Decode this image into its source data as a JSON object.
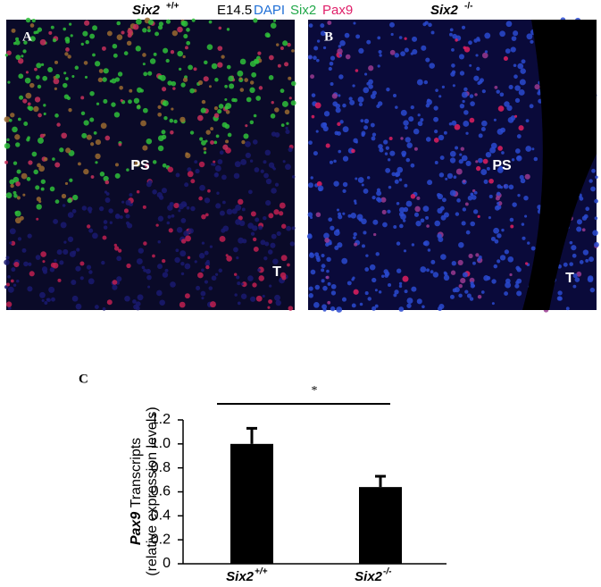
{
  "header": {
    "left_genotype": {
      "gene": "Six2",
      "sup": "+/+"
    },
    "stage": "E14.5",
    "stains": [
      {
        "name": "DAPI",
        "color": "#1f6fd6"
      },
      {
        "name": "Six2",
        "color": "#22a84a"
      },
      {
        "name": "Pax9",
        "color": "#e0206a"
      }
    ],
    "right_genotype": {
      "gene": "Six2",
      "sup": "-/-"
    }
  },
  "panels": [
    {
      "label": "A",
      "regions": [
        "PS",
        "T"
      ]
    },
    {
      "label": "B",
      "regions": [
        "PS",
        "T"
      ]
    }
  ],
  "chart_data": {
    "type": "bar",
    "label": "C",
    "categories": [
      "Six2",
      "Six2"
    ],
    "category_superscripts": [
      "+/+",
      "-/-"
    ],
    "values": [
      1.0,
      0.64
    ],
    "errors": [
      0.13,
      0.09
    ],
    "color": "#000000",
    "ylabel": {
      "gene": "Pax9",
      "text": "Transcripts",
      "second_line": "(relative expression levels)"
    },
    "ylim": [
      0,
      1.2
    ],
    "yticks": [
      0,
      0.2,
      0.4,
      0.6,
      0.8,
      {
        "value": 1,
        "label": "1.0"
      },
      1.2
    ],
    "significance": "*"
  }
}
